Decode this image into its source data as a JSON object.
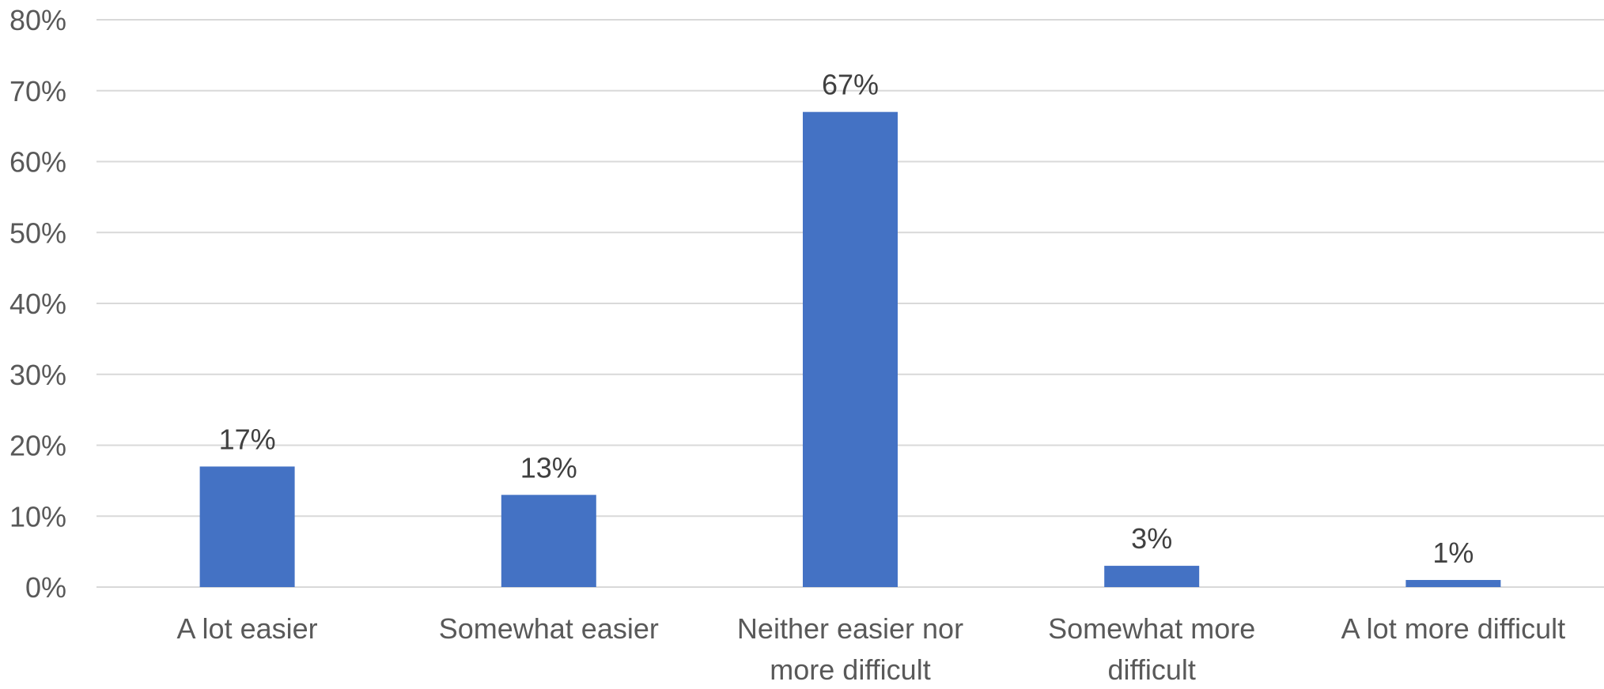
{
  "chart_data": {
    "type": "bar",
    "title": "",
    "xlabel": "",
    "ylabel": "",
    "categories": [
      [
        "A lot easier"
      ],
      [
        "Somewhat easier"
      ],
      [
        "Neither easier nor",
        "more difficult"
      ],
      [
        "Somewhat more",
        "difficult"
      ],
      [
        "A lot more difficult"
      ]
    ],
    "values": [
      17,
      13,
      67,
      3,
      1
    ],
    "data_labels": [
      "17%",
      "13%",
      "67%",
      "3%",
      "1%"
    ],
    "ylim": [
      0,
      80
    ],
    "y_ticks": [
      0,
      10,
      20,
      30,
      40,
      50,
      60,
      70,
      80
    ],
    "y_tick_labels": [
      "0%",
      "10%",
      "20%",
      "30%",
      "40%",
      "50%",
      "60%",
      "70%",
      "80%"
    ],
    "grid": true,
    "legend": "none",
    "colors": {
      "bar": "#4472C4",
      "grid": "#D9D9D9",
      "tick_text": "#595959",
      "data_label_text": "#404040"
    }
  }
}
